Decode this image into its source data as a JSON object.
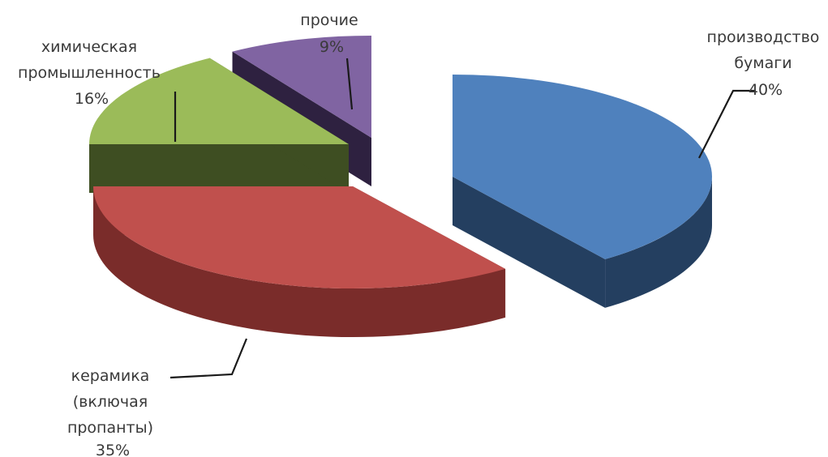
{
  "chart_data": {
    "type": "pie",
    "variant": "3d-exploded",
    "title": "",
    "legend": "none",
    "slices": [
      {
        "label": [
          "производство",
          "бумаги"
        ],
        "value": 40,
        "value_label": "40%",
        "color": "#4F81BD",
        "side_color": "#243F60"
      },
      {
        "label": [
          "керамика",
          "(включая",
          "пропанты)"
        ],
        "value": 35,
        "value_label": "35%",
        "color": "#C0504D",
        "side_color": "#7A2C2A"
      },
      {
        "label": [
          "химическая",
          "промышленность"
        ],
        "value": 16,
        "value_label": "16%",
        "color": "#9BBB59",
        "side_color": "#3E4E22"
      },
      {
        "label": [
          "прочие"
        ],
        "value": 9,
        "value_label": "9%",
        "color": "#8064A2",
        "side_color": "#2E2140"
      }
    ]
  }
}
